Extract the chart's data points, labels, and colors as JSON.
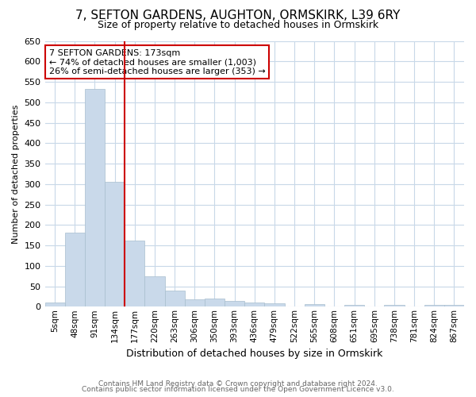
{
  "title": "7, SEFTON GARDENS, AUGHTON, ORMSKIRK, L39 6RY",
  "subtitle": "Size of property relative to detached houses in Ormskirk",
  "xlabel": "Distribution of detached houses by size in Ormskirk",
  "ylabel": "Number of detached properties",
  "categories": [
    "5sqm",
    "48sqm",
    "91sqm",
    "134sqm",
    "177sqm",
    "220sqm",
    "263sqm",
    "306sqm",
    "350sqm",
    "393sqm",
    "436sqm",
    "479sqm",
    "522sqm",
    "565sqm",
    "608sqm",
    "651sqm",
    "695sqm",
    "738sqm",
    "781sqm",
    "824sqm",
    "867sqm"
  ],
  "bar_values": [
    10,
    182,
    533,
    305,
    162,
    74,
    40,
    18,
    19,
    14,
    11,
    8,
    0,
    6,
    0,
    5,
    0,
    4,
    0,
    5,
    5
  ],
  "bar_color": "#c9d9ea",
  "bar_edgecolor": "#a8bece",
  "vline_color": "#cc0000",
  "vline_index": 3.5,
  "annotation_line1": "7 SEFTON GARDENS: 173sqm",
  "annotation_line2": "← 74% of detached houses are smaller (1,003)",
  "annotation_line3": "26% of semi-detached houses are larger (353) →",
  "annotation_box_edgecolor": "#cc0000",
  "ylim_min": 0,
  "ylim_max": 650,
  "yticks": [
    0,
    50,
    100,
    150,
    200,
    250,
    300,
    350,
    400,
    450,
    500,
    550,
    600,
    650
  ],
  "footer1": "Contains HM Land Registry data © Crown copyright and database right 2024.",
  "footer2": "Contains public sector information licensed under the Open Government Licence v3.0.",
  "background_color": "#ffffff",
  "grid_color": "#c8d8e8",
  "title_fontsize": 11,
  "subtitle_fontsize": 9,
  "ylabel_fontsize": 8,
  "xlabel_fontsize": 9,
  "tick_fontsize": 8,
  "xtick_fontsize": 7.5,
  "footer_fontsize": 6.5,
  "footer_color": "#666666",
  "ann_fontsize": 8
}
